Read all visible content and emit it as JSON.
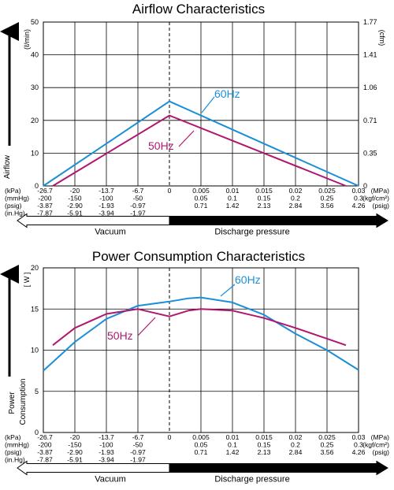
{
  "colors": {
    "hz60": "#1a8fd8",
    "hz50": "#b0176e",
    "grid": "#000000"
  },
  "airflow": {
    "title": "Airflow Characteristics",
    "ylabel": "Airflow",
    "yunit_left": "(ℓ/min)",
    "yunit_right": "(cfm)",
    "yticks_left": [
      "50",
      "40",
      "30",
      "20",
      "10",
      "0"
    ],
    "yticks_right": [
      "1.77",
      "1.41",
      "1.06",
      "0.71",
      "0.35",
      "0"
    ],
    "series_labels": {
      "hz60": "60Hz",
      "hz50": "50Hz"
    }
  },
  "power": {
    "title": "Power Consumption Characteristics",
    "ylabel": "Power\nConsumption",
    "yunit_left": "[ W ]",
    "yticks_left": [
      "20",
      "15",
      "10",
      "5",
      "0"
    ],
    "series_labels": {
      "hz60": "60Hz",
      "hz50": "50Hz"
    }
  },
  "xaxis_rows": [
    {
      "unit": "(kPa)",
      "values": [
        "-26.7",
        "-20",
        "-13.7",
        "-6.7",
        "0",
        "0.005",
        "0.01",
        "0.015",
        "0.02",
        "0.025",
        "0.03"
      ],
      "unit_right": "(MPa)"
    },
    {
      "unit": "(mmHg)",
      "values": [
        "-200",
        "-150",
        "-100",
        "-50",
        "",
        "0.05",
        "0.1",
        "0.15",
        "0.2",
        "0.25",
        "0.3"
      ],
      "unit_right": "(kgf/cm²)"
    },
    {
      "unit": "(psig)",
      "values": [
        "-3.87",
        "-2.90",
        "-1.93",
        "-0.97",
        "",
        "0.71",
        "1.42",
        "2.13",
        "2.84",
        "3.56",
        "4.26"
      ],
      "unit_right": "(psig)"
    },
    {
      "unit": "(in.Hg)",
      "values": [
        "-7.87",
        "-5.91",
        "-3.94",
        "-1.97",
        "",
        "",
        "",
        "",
        "",
        "",
        ""
      ],
      "unit_right": ""
    }
  ],
  "bands": {
    "vacuum": "Vacuum",
    "discharge": "Discharge pressure"
  },
  "chart_data": [
    {
      "type": "line",
      "title": "Airflow Characteristics",
      "ylabel": "Airflow",
      "x_ticks": [
        "-26.7",
        "-20",
        "-13.7",
        "-6.7",
        "0",
        "0.005",
        "0.01",
        "0.015",
        "0.02",
        "0.025",
        "0.03"
      ],
      "x_tick_count": 11,
      "ylim": [
        0,
        50
      ],
      "secondary_ylim": [
        0,
        1.77
      ],
      "grid": true,
      "series": [
        {
          "name": "60Hz",
          "x": [
            0.0,
            4.0,
            10.0
          ],
          "y": [
            0,
            25.8,
            0
          ]
        },
        {
          "name": "50Hz",
          "x": [
            0.3,
            4.0,
            9.6
          ],
          "y": [
            0,
            21.5,
            0
          ]
        }
      ]
    },
    {
      "type": "line",
      "title": "Power Consumption Characteristics",
      "ylabel": "Power Consumption",
      "x_ticks": [
        "-26.7",
        "-20",
        "-13.7",
        "-6.7",
        "0",
        "0.005",
        "0.01",
        "0.015",
        "0.02",
        "0.025",
        "0.03"
      ],
      "x_tick_count": 11,
      "ylim": [
        0,
        20
      ],
      "grid": true,
      "series": [
        {
          "name": "60Hz",
          "x": [
            0.0,
            1.0,
            2.0,
            3.0,
            4.0,
            4.6,
            5.0,
            6.0,
            7.0,
            8.0,
            9.0,
            10.0
          ],
          "y": [
            7.5,
            11.0,
            13.8,
            15.4,
            15.9,
            16.3,
            16.4,
            15.8,
            14.3,
            12.0,
            10.0,
            7.6
          ]
        },
        {
          "name": "50Hz",
          "x": [
            0.3,
            1.0,
            2.0,
            3.0,
            4.0,
            4.6,
            5.0,
            6.0,
            7.0,
            8.0,
            9.0,
            9.6
          ],
          "y": [
            10.6,
            12.7,
            14.4,
            15.0,
            14.1,
            14.8,
            15.0,
            14.8,
            13.9,
            12.7,
            11.4,
            10.6
          ]
        }
      ]
    }
  ]
}
